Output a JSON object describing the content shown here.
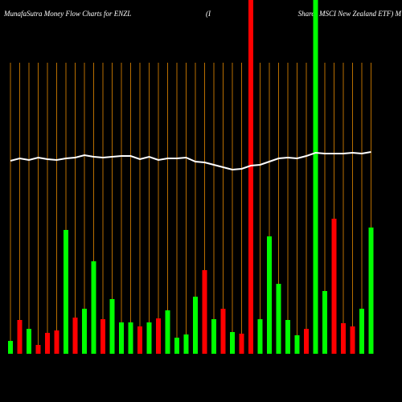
{
  "chart_data": {
    "type": "bar",
    "title": "MunafaSutra  Money Flow  Charts for ENZL",
    "subtitle": "(I",
    "subtitle2": "Shares MSCI New Zealand ETF) M",
    "categories": [
      null,
      null,
      null,
      null,
      null,
      null,
      null,
      null,
      null,
      null,
      null,
      null,
      null,
      null,
      null,
      null,
      null,
      null,
      null,
      null,
      null,
      null,
      null,
      null,
      null,
      null,
      null,
      null,
      null,
      null,
      null,
      null,
      null,
      null,
      null,
      null,
      null,
      null,
      null,
      null
    ],
    "series": [
      {
        "type": "bar",
        "values": [
          16,
          42,
          31,
          11,
          26,
          29,
          154,
          45,
          56,
          115,
          43,
          68,
          39,
          39,
          34,
          39,
          44,
          54,
          20,
          24,
          71,
          104,
          43,
          56,
          27,
          25,
          440,
          43,
          146,
          87,
          42,
          23,
          31,
          440,
          78,
          168,
          38,
          34,
          56,
          157
        ],
        "colors": [
          "#00ff00",
          "#ff0000",
          "#00ff00",
          "#ff0000",
          "#ff0000",
          "#ff0000",
          "#00ff00",
          "#ff0000",
          "#00ff00",
          "#00ff00",
          "#ff0000",
          "#00ff00",
          "#00ff00",
          "#00ff00",
          "#ff0000",
          "#00ff00",
          "#ff0000",
          "#00ff00",
          "#00ff00",
          "#00ff00",
          "#00ff00",
          "#ff0000",
          "#00ff00",
          "#ff0000",
          "#00ff00",
          "#ff0000",
          "#ff0000",
          "#00ff00",
          "#00ff00",
          "#00ff00",
          "#00ff00",
          "#00ff00",
          "#ff0000",
          "#00ff00",
          "#00ff00",
          "#ff0000",
          "#ff0000",
          "#ff0000",
          "#00ff00",
          "#00ff00"
        ]
      },
      {
        "type": "line",
        "color": "#ffffff",
        "values": [
          240,
          243,
          241,
          244,
          242,
          241,
          243,
          244,
          247,
          245,
          244,
          245,
          246,
          246,
          242,
          245,
          241,
          243,
          243,
          244,
          239,
          238,
          235,
          232,
          229,
          230,
          234,
          235,
          239,
          243,
          244,
          243,
          246,
          250,
          249,
          249,
          249,
          250,
          249,
          251
        ]
      }
    ],
    "ylim": [
      0,
      440
    ],
    "grid": true,
    "grid_color": "#b86e00"
  }
}
